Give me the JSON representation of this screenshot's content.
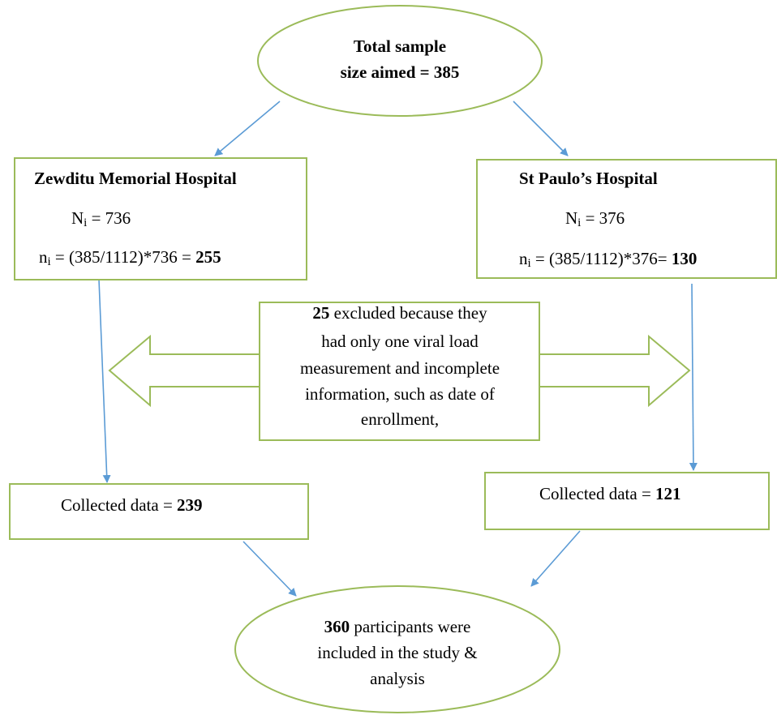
{
  "top": {
    "line1": "Total sample",
    "line2": "size aimed = 385"
  },
  "left": {
    "title": "Zewditu Memorial Hospital",
    "N_label": "N",
    "N_sub": "i",
    "N_value": " = 736",
    "n_label": "n",
    "n_sub": "i",
    "n_formula": " = (385/1112)*736 = ",
    "n_result": "255"
  },
  "right": {
    "title": "St Paulo’s Hospital",
    "N_label": "N",
    "N_sub": "i",
    "N_value": " = 376",
    "n_label": "n",
    "n_sub": "i",
    "n_formula": " = (385/1112)*376= ",
    "n_result": "130"
  },
  "exclusion": {
    "count": "25",
    "lines": [
      " excluded because they",
      "had only one viral load",
      "measurement and incomplete",
      "information, such as date of",
      "enrollment,"
    ]
  },
  "collected_left": {
    "label": "Collected data = ",
    "value": "239"
  },
  "collected_right": {
    "label": "Collected data = ",
    "value": "121"
  },
  "bottom": {
    "count": "360",
    "lines": [
      " participants were",
      "included in the study &",
      "analysis"
    ]
  }
}
